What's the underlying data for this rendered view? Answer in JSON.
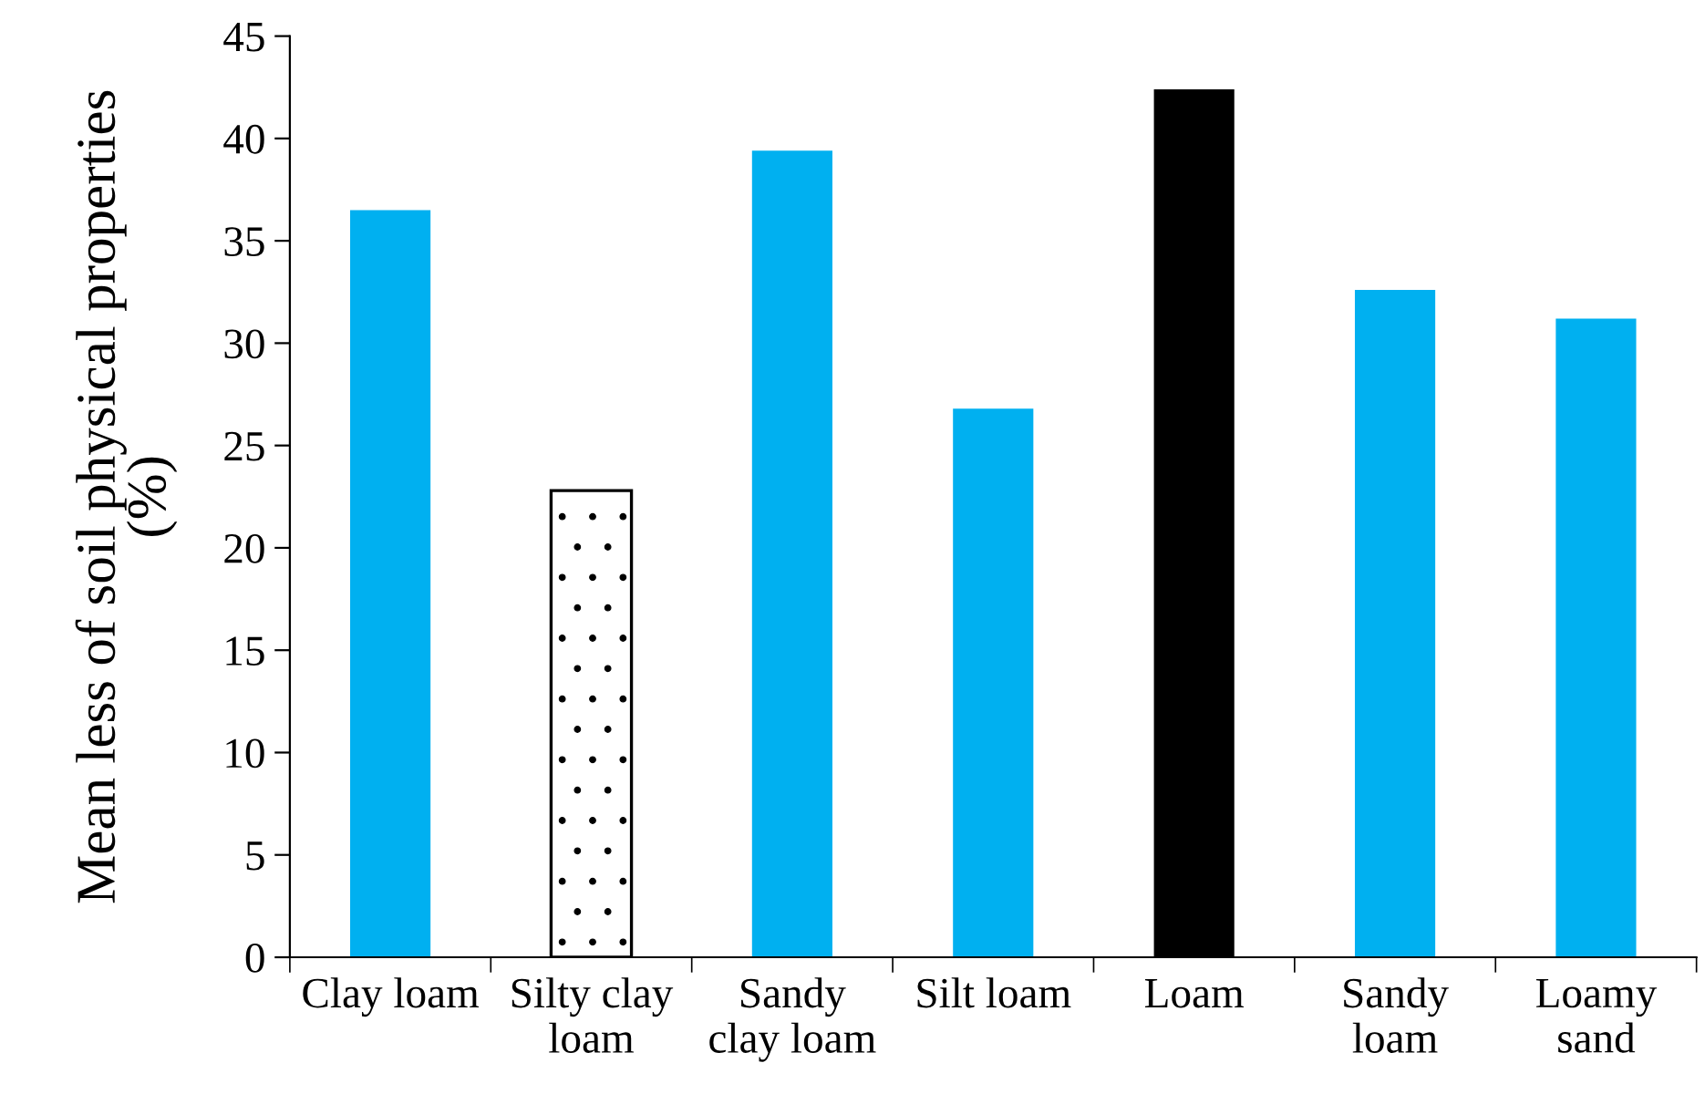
{
  "chart_data": {
    "type": "bar",
    "ylabel": "Mean less of soil physical properties\n(%)",
    "categories": [
      "Clay loam",
      "Silty clay\nloam",
      "Sandy\nclay loam",
      "Silt loam",
      "Loam",
      "Sandy\nloam",
      "Loamy\nsand"
    ],
    "values": [
      36.5,
      22.8,
      39.4,
      26.8,
      42.4,
      32.6,
      31.2
    ],
    "colors": [
      "#00b0f0",
      "#ffffff",
      "#00b0f0",
      "#00b0f0",
      "#000000",
      "#00b0f0",
      "#00b0f0"
    ],
    "ylim": [
      0,
      45
    ],
    "yticks": [
      0,
      5,
      10,
      15,
      20,
      25,
      30,
      35,
      40,
      45
    ],
    "grid": false,
    "legend": false
  }
}
